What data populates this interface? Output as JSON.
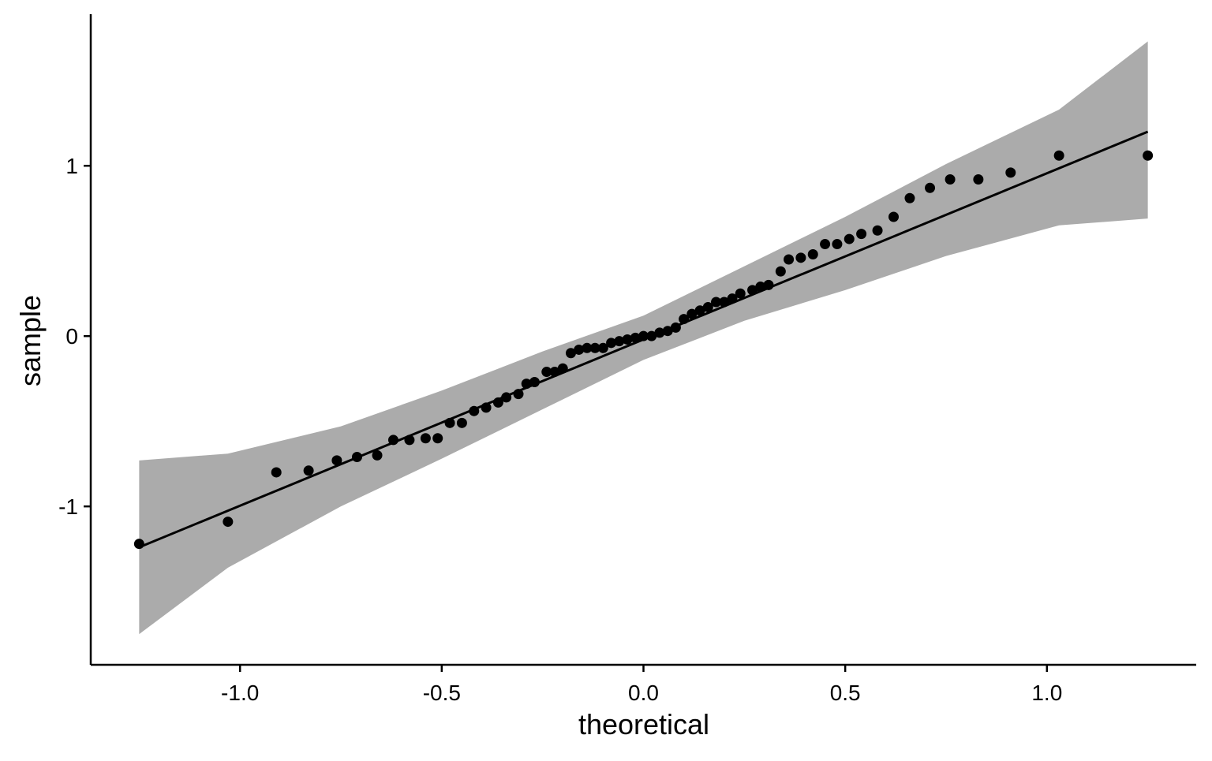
{
  "chart_data": {
    "type": "scatter",
    "title": "",
    "xlabel": "theoretical",
    "ylabel": "sample",
    "xlim": [
      -1.37,
      1.37
    ],
    "ylim": [
      -1.93,
      1.89
    ],
    "x_ticks": [
      -1.0,
      -0.5,
      0.0,
      0.5,
      1.0
    ],
    "x_tick_labels": [
      "-1.0",
      "-0.5",
      "0.0",
      "0.5",
      "1.0"
    ],
    "y_ticks": [
      -1,
      0,
      1
    ],
    "y_tick_labels": [
      "-1",
      "0",
      "1"
    ],
    "grid": false,
    "legend": "none",
    "colors": {
      "points": "#000000",
      "line": "#000000",
      "band": "#ababab"
    },
    "points": [
      [
        -1.25,
        -1.22
      ],
      [
        -1.03,
        -1.09
      ],
      [
        -0.91,
        -0.8
      ],
      [
        -0.83,
        -0.79
      ],
      [
        -0.76,
        -0.73
      ],
      [
        -0.71,
        -0.71
      ],
      [
        -0.66,
        -0.7
      ],
      [
        -0.62,
        -0.61
      ],
      [
        -0.58,
        -0.61
      ],
      [
        -0.54,
        -0.6
      ],
      [
        -0.51,
        -0.6
      ],
      [
        -0.48,
        -0.51
      ],
      [
        -0.45,
        -0.51
      ],
      [
        -0.42,
        -0.44
      ],
      [
        -0.39,
        -0.42
      ],
      [
        -0.36,
        -0.39
      ],
      [
        -0.34,
        -0.36
      ],
      [
        -0.31,
        -0.34
      ],
      [
        -0.29,
        -0.28
      ],
      [
        -0.27,
        -0.27
      ],
      [
        -0.24,
        -0.21
      ],
      [
        -0.22,
        -0.21
      ],
      [
        -0.2,
        -0.19
      ],
      [
        -0.18,
        -0.1
      ],
      [
        -0.16,
        -0.08
      ],
      [
        -0.14,
        -0.07
      ],
      [
        -0.12,
        -0.07
      ],
      [
        -0.1,
        -0.07
      ],
      [
        -0.08,
        -0.04
      ],
      [
        -0.06,
        -0.03
      ],
      [
        -0.04,
        -0.02
      ],
      [
        -0.02,
        -0.01
      ],
      [
        0.0,
        -0.0
      ],
      [
        0.02,
        0.0
      ],
      [
        0.04,
        0.02
      ],
      [
        0.06,
        0.03
      ],
      [
        0.08,
        0.05
      ],
      [
        0.1,
        0.1
      ],
      [
        0.12,
        0.13
      ],
      [
        0.14,
        0.15
      ],
      [
        0.16,
        0.17
      ],
      [
        0.18,
        0.2
      ],
      [
        0.2,
        0.2
      ],
      [
        0.22,
        0.22
      ],
      [
        0.24,
        0.25
      ],
      [
        0.27,
        0.27
      ],
      [
        0.29,
        0.29
      ],
      [
        0.31,
        0.3
      ],
      [
        0.34,
        0.38
      ],
      [
        0.36,
        0.45
      ],
      [
        0.39,
        0.46
      ],
      [
        0.42,
        0.48
      ],
      [
        0.45,
        0.54
      ],
      [
        0.48,
        0.54
      ],
      [
        0.51,
        0.57
      ],
      [
        0.54,
        0.6
      ],
      [
        0.58,
        0.62
      ],
      [
        0.62,
        0.7
      ],
      [
        0.66,
        0.81
      ],
      [
        0.71,
        0.87
      ],
      [
        0.76,
        0.92
      ],
      [
        0.83,
        0.92
      ],
      [
        0.91,
        0.96
      ],
      [
        1.03,
        1.06
      ],
      [
        1.25,
        1.06
      ]
    ],
    "reference_line": {
      "x": [
        -1.25,
        1.25
      ],
      "y": [
        -1.24,
        1.2
      ]
    },
    "confidence_band": [
      {
        "x": -1.25,
        "lower": -1.75,
        "upper": -0.73
      },
      {
        "x": -1.03,
        "lower": -1.36,
        "upper": -0.69
      },
      {
        "x": -0.75,
        "lower": -1.0,
        "upper": -0.53
      },
      {
        "x": -0.5,
        "lower": -0.72,
        "upper": -0.32
      },
      {
        "x": -0.25,
        "lower": -0.43,
        "upper": -0.09
      },
      {
        "x": 0.0,
        "lower": -0.14,
        "upper": 0.12
      },
      {
        "x": 0.25,
        "lower": 0.09,
        "upper": 0.41
      },
      {
        "x": 0.5,
        "lower": 0.27,
        "upper": 0.7
      },
      {
        "x": 0.75,
        "lower": 0.47,
        "upper": 1.01
      },
      {
        "x": 1.03,
        "lower": 0.65,
        "upper": 1.33
      },
      {
        "x": 1.25,
        "lower": 0.69,
        "upper": 1.73
      }
    ]
  }
}
